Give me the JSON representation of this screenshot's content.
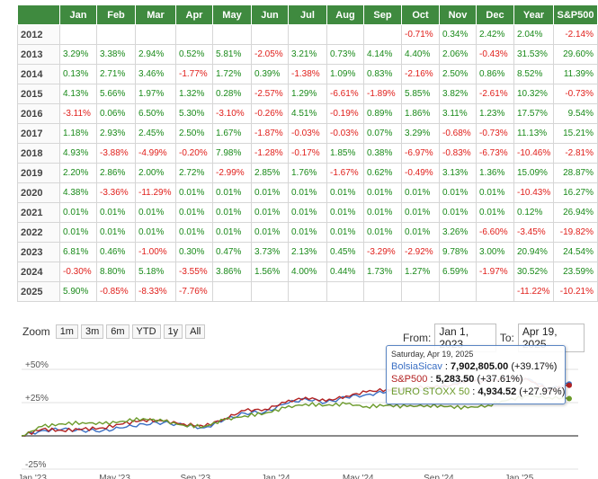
{
  "table": {
    "headers": [
      "",
      "Jan",
      "Feb",
      "Mar",
      "Apr",
      "May",
      "Jun",
      "Jul",
      "Aug",
      "Sep",
      "Oct",
      "Nov",
      "Dec",
      "Year",
      "S&P500"
    ],
    "rows": [
      {
        "year": "2012",
        "cells": [
          "",
          "",
          "",
          "",
          "",
          "",
          "",
          "",
          "",
          "-0.71%",
          "0.34%",
          "2.42%",
          "2.04%",
          "-2.14%"
        ]
      },
      {
        "year": "2013",
        "cells": [
          "3.29%",
          "3.38%",
          "2.94%",
          "0.52%",
          "5.81%",
          "-2.05%",
          "3.21%",
          "0.73%",
          "4.14%",
          "4.40%",
          "2.06%",
          "-0.43%",
          "31.53%",
          "29.60%"
        ]
      },
      {
        "year": "2014",
        "cells": [
          "0.13%",
          "2.71%",
          "3.46%",
          "-1.77%",
          "1.72%",
          "0.39%",
          "-1.38%",
          "1.09%",
          "0.83%",
          "-2.16%",
          "2.50%",
          "0.86%",
          "8.52%",
          "11.39%"
        ]
      },
      {
        "year": "2015",
        "cells": [
          "4.13%",
          "5.66%",
          "1.97%",
          "1.32%",
          "0.28%",
          "-2.57%",
          "1.29%",
          "-6.61%",
          "-1.89%",
          "5.85%",
          "3.82%",
          "-2.61%",
          "10.32%",
          "-0.73%"
        ]
      },
      {
        "year": "2016",
        "cells": [
          "-3.11%",
          "0.06%",
          "6.50%",
          "5.30%",
          "-3.10%",
          "-0.26%",
          "4.51%",
          "-0.19%",
          "0.89%",
          "1.86%",
          "3.11%",
          "1.23%",
          "17.57%",
          "9.54%"
        ]
      },
      {
        "year": "2017",
        "cells": [
          "1.18%",
          "2.93%",
          "2.45%",
          "2.50%",
          "1.67%",
          "-1.87%",
          "-0.03%",
          "-0.03%",
          "0.07%",
          "3.29%",
          "-0.68%",
          "-0.73%",
          "11.13%",
          "15.21%"
        ]
      },
      {
        "year": "2018",
        "cells": [
          "4.93%",
          "-3.88%",
          "-4.99%",
          "-0.20%",
          "7.98%",
          "-1.28%",
          "-0.17%",
          "1.85%",
          "0.38%",
          "-6.97%",
          "-0.83%",
          "-6.73%",
          "-10.46%",
          "-2.81%"
        ]
      },
      {
        "year": "2019",
        "cells": [
          "2.20%",
          "2.86%",
          "2.00%",
          "2.72%",
          "-2.99%",
          "2.85%",
          "1.76%",
          "-1.67%",
          "0.62%",
          "-0.49%",
          "3.13%",
          "1.36%",
          "15.09%",
          "28.87%"
        ]
      },
      {
        "year": "2020",
        "cells": [
          "4.38%",
          "-3.36%",
          "-11.29%",
          "0.01%",
          "0.01%",
          "0.01%",
          "0.01%",
          "0.01%",
          "0.01%",
          "0.01%",
          "0.01%",
          "0.01%",
          "-10.43%",
          "16.27%"
        ]
      },
      {
        "year": "2021",
        "cells": [
          "0.01%",
          "0.01%",
          "0.01%",
          "0.01%",
          "0.01%",
          "0.01%",
          "0.01%",
          "0.01%",
          "0.01%",
          "0.01%",
          "0.01%",
          "0.01%",
          "0.12%",
          "26.94%"
        ]
      },
      {
        "year": "2022",
        "cells": [
          "0.01%",
          "0.01%",
          "0.01%",
          "0.01%",
          "0.01%",
          "0.01%",
          "0.01%",
          "0.01%",
          "0.01%",
          "0.01%",
          "3.26%",
          "-6.60%",
          "-3.45%",
          "-19.82%"
        ]
      },
      {
        "year": "2023",
        "cells": [
          "6.81%",
          "0.46%",
          "-1.00%",
          "0.30%",
          "0.47%",
          "3.73%",
          "2.13%",
          "0.45%",
          "-3.29%",
          "-2.92%",
          "9.78%",
          "3.00%",
          "20.94%",
          "24.54%"
        ]
      },
      {
        "year": "2024",
        "cells": [
          "-0.30%",
          "8.80%",
          "5.18%",
          "-3.55%",
          "3.86%",
          "1.56%",
          "4.00%",
          "0.44%",
          "1.73%",
          "1.27%",
          "6.59%",
          "-1.97%",
          "30.52%",
          "23.59%"
        ]
      },
      {
        "year": "2025",
        "cells": [
          "5.90%",
          "-0.85%",
          "-8.33%",
          "-7.76%",
          "",
          "",
          "",
          "",
          "",
          "",
          "",
          "",
          "-11.22%",
          "-10.21%"
        ]
      }
    ]
  },
  "zoom": {
    "label": "Zoom",
    "buttons": [
      "1m",
      "3m",
      "6m",
      "YTD",
      "1y",
      "All"
    ]
  },
  "range": {
    "from_label": "From:",
    "from_value": "Jan 1, 2023",
    "to_label": "To:",
    "to_value": "Apr 19, 2025"
  },
  "tooltip": {
    "date": "Saturday, Apr 19, 2025",
    "rows": [
      {
        "name": "BolsiaSicav",
        "sep": ":",
        "value": "7,902,805.00",
        "pct": "(+39.17%)",
        "color": "#3a6fc4"
      },
      {
        "name": "S&P500",
        "sep": ":",
        "value": "5,283.50",
        "pct": "(+37.61%)",
        "color": "#b22222"
      },
      {
        "name": "EURO STOXX 50",
        "sep": ":",
        "value": "4,934.52",
        "pct": "(+27.97%)",
        "color": "#6b9a2a"
      }
    ]
  },
  "colors": {
    "header_bg": "#3f8a3f",
    "positive": "#1a8a1a",
    "negative": "#e0201c"
  },
  "chart_data": {
    "type": "line",
    "y_ticks": [
      "+50%",
      "+25%",
      "-25%"
    ],
    "x_ticks": [
      "Jan '23",
      "May '23",
      "Sep '23",
      "Jan '24",
      "May '24",
      "Sep '24",
      "Jan '25"
    ],
    "x": [
      "2023-01",
      "2023-02",
      "2023-03",
      "2023-04",
      "2023-05",
      "2023-06",
      "2023-07",
      "2023-08",
      "2023-09",
      "2023-10",
      "2023-11",
      "2023-12",
      "2024-01",
      "2024-02",
      "2024-03",
      "2024-04",
      "2024-05",
      "2024-06",
      "2024-07",
      "2024-08",
      "2024-09",
      "2024-10",
      "2024-11",
      "2024-12",
      "2025-01",
      "2025-02",
      "2025-03",
      "2025-04"
    ],
    "series": [
      {
        "name": "BolsiaSicav",
        "color": "#3a6fc4",
        "values": [
          0,
          4,
          5,
          4,
          4,
          6,
          9,
          10,
          8,
          6,
          12,
          17,
          18,
          24,
          28,
          25,
          29,
          31,
          33,
          34,
          35,
          37,
          43,
          42,
          44,
          43,
          35,
          39
        ]
      },
      {
        "name": "S&P500",
        "color": "#b22222",
        "values": [
          0,
          5,
          4,
          5,
          6,
          9,
          12,
          11,
          9,
          7,
          13,
          19,
          20,
          25,
          29,
          26,
          30,
          33,
          35,
          35,
          37,
          37,
          42,
          41,
          44,
          42,
          34,
          38
        ]
      },
      {
        "name": "EURO STOXX 50",
        "color": "#6b9a2a",
        "values": [
          0,
          7,
          9,
          10,
          9,
          11,
          13,
          11,
          8,
          7,
          12,
          15,
          17,
          21,
          24,
          23,
          24,
          22,
          23,
          22,
          23,
          22,
          21,
          23,
          27,
          30,
          29,
          28
        ]
      }
    ],
    "ylim": [
      -25,
      60
    ],
    "legend": "tooltip top-right"
  }
}
